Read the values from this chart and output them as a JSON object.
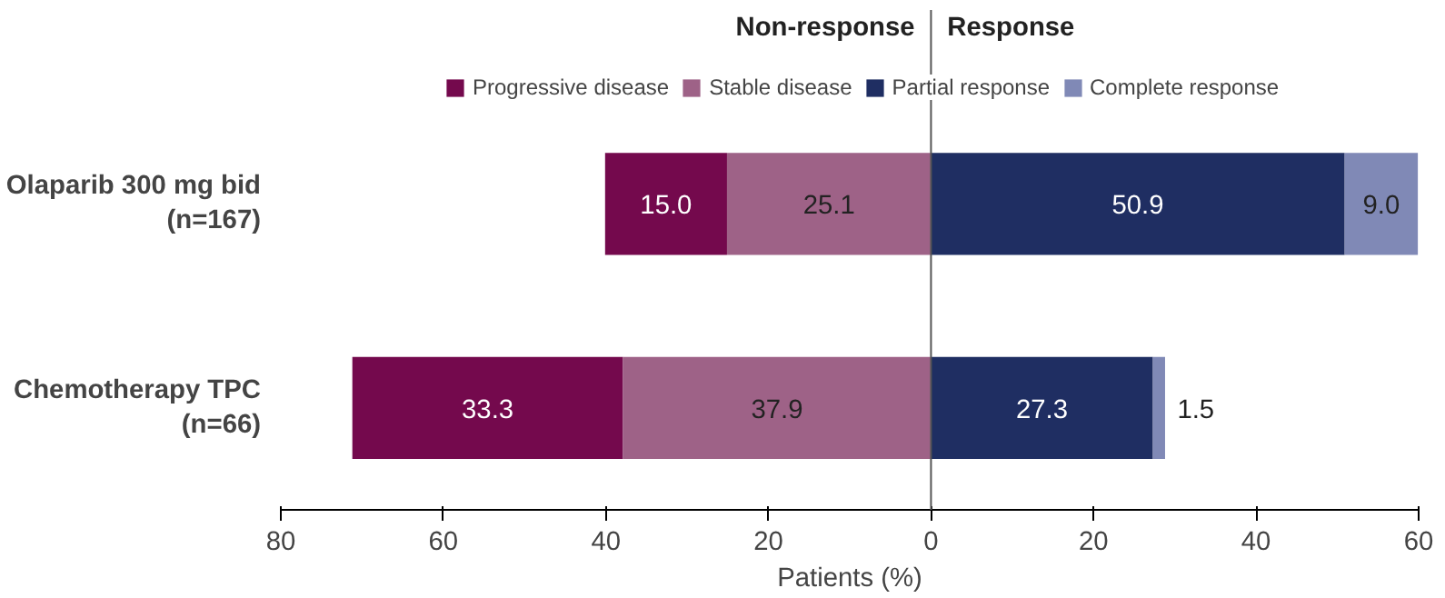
{
  "chart_data": {
    "type": "bar",
    "orientation": "horizontal",
    "categories": [
      "Olaparib 300 mg bid\n(n=167)",
      "Chemotherapy TPC\n(n=66)"
    ],
    "series": [
      {
        "name": "Progressive disease",
        "color": "#74094d",
        "values": [
          15.0,
          33.3
        ],
        "base": [
          -40.1,
          -71.2
        ],
        "value_labels": [
          "15.0",
          "33.3"
        ]
      },
      {
        "name": "Stable disease",
        "color": "#9e6287",
        "values": [
          25.1,
          37.9
        ],
        "base": [
          -25.1,
          -37.9
        ],
        "value_labels": [
          "25.1",
          "37.9"
        ]
      },
      {
        "name": "Partial response",
        "color": "#1f2e62",
        "values": [
          50.9,
          27.3
        ],
        "base": [
          0,
          0
        ],
        "value_labels": [
          "50.9",
          "27.3"
        ]
      },
      {
        "name": "Complete response",
        "color": "#8089b6",
        "values": [
          9.0,
          1.5
        ],
        "base": [
          50.9,
          27.3
        ],
        "value_labels": [
          "9.0",
          "1.5"
        ]
      }
    ],
    "xlim": [
      -80,
      60
    ],
    "xticks": [
      {
        "value": -80,
        "label": "80"
      },
      {
        "value": -60,
        "label": "60"
      },
      {
        "value": -40,
        "label": "40"
      },
      {
        "value": -20,
        "label": "20"
      },
      0,
      20,
      40,
      60
    ],
    "xlabel": "Patients (%)",
    "ref_lines": [
      {
        "axis": "x",
        "value": 0,
        "label": null,
        "color": "#555555"
      }
    ],
    "annotations": [
      "Non-response",
      "Response"
    ],
    "legend": "top"
  }
}
